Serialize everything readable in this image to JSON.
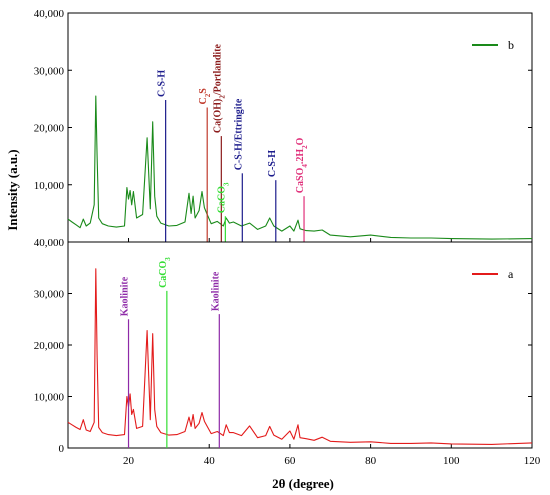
{
  "chart_data": [
    {
      "type": "line",
      "panel": "top",
      "xlabel": "",
      "ylabel": "",
      "xlim": [
        5,
        120
      ],
      "ylim": [
        0,
        40000
      ],
      "y_tick_labels": [
        "40,000",
        "30,000",
        "20,000",
        "10,000"
      ],
      "grid": false,
      "legend_position": "top-right",
      "series": [
        {
          "name": "b",
          "color": "#1a8a1a",
          "x": [
            5,
            6,
            7,
            8,
            8.8,
            9.5,
            10.5,
            11.5,
            11.9,
            12.2,
            12.6,
            13.5,
            15,
            17,
            19,
            19.6,
            20,
            20.4,
            20.8,
            21.2,
            22,
            23.5,
            24.6,
            25,
            25.4,
            26,
            26.5,
            27,
            28,
            30,
            32,
            34,
            35,
            35.5,
            36,
            36.5,
            37.5,
            38.2,
            38.8,
            39.5,
            40.5,
            42,
            43.5,
            44.2,
            45,
            46,
            48,
            50,
            52,
            54,
            55,
            56,
            58,
            60,
            61,
            62,
            62.5,
            64,
            66,
            68,
            70,
            75,
            80,
            85,
            90,
            95,
            100,
            110,
            120
          ],
          "y": [
            4000,
            3500,
            3000,
            2500,
            4000,
            2800,
            3300,
            6500,
            25500,
            15000,
            4200,
            3200,
            2800,
            2600,
            2800,
            9500,
            7500,
            9000,
            6500,
            8800,
            4200,
            4800,
            18200,
            12000,
            5800,
            21000,
            8000,
            4500,
            3300,
            2800,
            2900,
            3500,
            8500,
            5000,
            8000,
            4200,
            5500,
            8800,
            6000,
            4800,
            3200,
            3600,
            2800,
            4200,
            3300,
            3500,
            2800,
            3300,
            2200,
            2800,
            4200,
            2800,
            1900,
            2800,
            1900,
            3800,
            2300,
            2000,
            1900,
            2100,
            1200,
            900,
            1200,
            800,
            700,
            700,
            600,
            500,
            600
          ]
        }
      ],
      "annotations": [
        {
          "label": "C-S-H",
          "x": 29.2,
          "top": 24800,
          "color": "#1c1c8c"
        },
        {
          "label": "C2S",
          "x": 39.5,
          "top": 23500,
          "color": "#c0392b"
        },
        {
          "label": "Ca(OH)2/Portlandite",
          "x": 43,
          "top": 18500,
          "color": "#8b1a1a"
        },
        {
          "label": "CaCO3",
          "x": 44,
          "top": 4500,
          "color": "#33dd33"
        },
        {
          "label": "C-S-H/Ettringite",
          "x": 48.2,
          "top": 12000,
          "color": "#1c1c8c"
        },
        {
          "label": "C-S-H",
          "x": 56.5,
          "top": 10800,
          "color": "#1c1c8c"
        },
        {
          "label": "CaSO4.2H2O",
          "x": 63.5,
          "top": 8000,
          "color": "#e0307a"
        }
      ]
    },
    {
      "type": "line",
      "panel": "bottom",
      "xlabel": "2θ (degree)",
      "ylabel": "Intensity (a.u.)",
      "xlim": [
        5,
        120
      ],
      "ylim": [
        0,
        40000
      ],
      "x_tick_labels": [
        "20",
        "40",
        "60",
        "80",
        "100",
        "120"
      ],
      "y_tick_labels": [
        "40,000",
        "30,000",
        "20,000",
        "10,000",
        "0"
      ],
      "grid": false,
      "legend_position": "top-right",
      "series": [
        {
          "name": "a",
          "color": "#e31b1b",
          "x": [
            5,
            6,
            7,
            8,
            8.8,
            9.5,
            10.5,
            11.5,
            11.9,
            12.2,
            12.6,
            13.5,
            15,
            17,
            19,
            19.6,
            20,
            20.4,
            20.8,
            21.2,
            22,
            23.5,
            24.6,
            25,
            25.4,
            26,
            26.5,
            27,
            28,
            30,
            32,
            34,
            35,
            35.5,
            36,
            36.5,
            37.5,
            38.2,
            38.8,
            39.5,
            40.5,
            42,
            43.5,
            44.2,
            45,
            46,
            48,
            50,
            52,
            54,
            55,
            56,
            58,
            60,
            61,
            62,
            62.5,
            64,
            66,
            68,
            70,
            75,
            80,
            85,
            90,
            95,
            100,
            110,
            120
          ],
          "y": [
            5000,
            4500,
            4000,
            3600,
            5500,
            3500,
            3200,
            5000,
            34800,
            18000,
            4000,
            3000,
            2600,
            2400,
            2600,
            10000,
            8000,
            10500,
            6500,
            7500,
            3800,
            4200,
            22800,
            14000,
            5500,
            22200,
            7500,
            4200,
            3000,
            2500,
            2600,
            3200,
            6000,
            4200,
            6500,
            3800,
            4800,
            6900,
            5200,
            4200,
            2800,
            3200,
            2400,
            4500,
            3000,
            3000,
            2400,
            4300,
            2000,
            2400,
            4200,
            2500,
            1700,
            3300,
            1700,
            4500,
            2000,
            1800,
            1500,
            2100,
            1300,
            1100,
            1200,
            900,
            900,
            1000,
            800,
            700,
            1000
          ]
        }
      ],
      "annotations": [
        {
          "label": "Kaolinite",
          "x": 20,
          "top": 25000,
          "color": "#8e2aa8"
        },
        {
          "label": "CaCO3",
          "x": 29.5,
          "top": 30500,
          "color": "#33dd33"
        },
        {
          "label": "Kaolinite",
          "x": 42.5,
          "top": 26000,
          "color": "#8e2aa8"
        }
      ]
    }
  ]
}
